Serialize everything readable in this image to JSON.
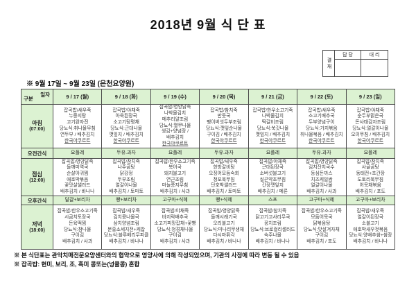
{
  "title": "2018년 9월 식 단 표",
  "approval": {
    "stamp_label": "결재",
    "columns": [
      "담 당",
      "대 리"
    ]
  },
  "subtitle": "※ 9월 17일 ~ 9월 23일 (은천요양원)",
  "table": {
    "corner": {
      "top_right": "일자",
      "bottom_left": "구분"
    },
    "day_headers": [
      "9 / 17 (월)",
      "9 / 18 (화)",
      "9 / 19 (수)",
      "9 / 20 (목)",
      "9 / 21 (금)",
      "9 / 22 (토)",
      "9 / 23 (일)"
    ],
    "rows": [
      {
        "label": "아침",
        "time": "(07:00)",
        "type": "breakfast",
        "cells": [
          [
            "잡곡밥/새우죽",
            "누룽지탕",
            "고기완자전",
            "당뇨식:취나물무침",
            "연두부 / 배추김치",
            "한국야쿠르트"
          ],
          [
            "잡곡밥/야채죽",
            "아욱된장국",
            "소고기탕평채",
            "당뇨식:근대나물",
            "깻잎지 / 배추김치",
            "한국야쿠르트"
          ],
          [
            "잡곡밥/영양닭죽",
            "나박물김치",
            "메추리알조림",
            "당뇨식:열무나물",
            "생김+양념장 /",
            "배추김치",
            "한국야쿠르트"
          ],
          [
            "잡곡밥/참치죽",
            "만둣국",
            "팽이버섯두부조림",
            "당뇨식:깻잎순나물",
            "구이김 / 배추김치",
            "한국야쿠르트"
          ],
          [
            "잡곡밥/한우소고기죽",
            "나박물김치",
            "떡갈비조림",
            "당뇨식:쑥갓나물",
            "깻잎지 / 배추김치",
            "한국야쿠르트"
          ],
          [
            "잡곡밥/새우죽",
            "소고기배추국",
            "두부양념구이",
            "당뇨식:가지볶음",
            "취나물볶음 / 배추김치",
            "한국야쿠르트"
          ],
          [
            "잡곡밥/야채죽",
            "순두부맑은국",
            "돈사태감자조림",
            "당뇨식:얼갈이나물",
            "오이무침 / 배추김치",
            "한국야쿠르트"
          ]
        ]
      },
      {
        "label": "오전간식",
        "time": "",
        "type": "msnack",
        "cells": [
          [
            "요플레"
          ],
          [
            "두유.과자"
          ],
          [
            "요플레"
          ],
          [
            "두유.과자"
          ],
          [
            "요플레"
          ],
          [
            "두유.과자"
          ],
          [
            "요플레"
          ]
        ]
      },
      {
        "label": "점심",
        "time": "(12:00)",
        "type": "lunch",
        "cells": [
          [
            "잡곡밥/영양닭죽",
            "들깨미역국",
            "순살아귀찜",
            "애호박볶음",
            "꽃맛살샐러드",
            "배추김치 / 바나나"
          ],
          [
            "잡곡밥/참치죽",
            "나주곰탕",
            "닭강정",
            "두부조림",
            "얼갈이나물",
            "배추김치 / 토마토"
          ],
          [
            "잡곡밥/한우소고기죽",
            "북어국",
            "돼지불고기",
            "연근조림",
            "마늘쫑지무침",
            "배추김치 / 사과"
          ],
          [
            "잡곡밥/새우죽",
            "한방갈비탕",
            "오징어모듬숙회",
            "청포묵무침",
            "단호박샐러드",
            "배추김치 / 토마토"
          ],
          [
            "잡곡밥/야채죽",
            "근대된장국",
            "소버섯불고기",
            "실곤약초무침",
            "간장깻잎지",
            "배추김치 / 메론"
          ],
          [
            "잡곡밥/영양닭죽",
            "김치잔치국수",
            "등심돈까스",
            "치즈케일쌈",
            "얼갈이나물",
            "배추김치 / 사과"
          ],
          [
            "잡곡밥/참치죽",
            "사골곰탕",
            "동태전+초간장",
            "도토리묵무침",
            "어묵채볶음",
            "배추김치 / 포도"
          ]
        ]
      },
      {
        "label": "오후간식",
        "time": "",
        "type": "asnack",
        "cells": [
          [
            "달걀+보리차"
          ],
          [
            "빵+보리차"
          ],
          [
            "고구마+식혜"
          ],
          [
            "빵+식혜"
          ],
          [
            "스프"
          ],
          [
            "고구마+식혜"
          ],
          [
            "고구마+보리차"
          ]
        ]
      },
      {
        "label": "저녁",
        "time": "(18:00)",
        "type": "dinner",
        "cells": [
          [
            "잡곡밥/한우소고기죽",
            "시금치토장국",
            "돈육떡찜",
            "당뇨식:참나물",
            "구이김",
            "배추김치 / 사과"
          ],
          [
            "잡곡밥/새우죽",
            "김치콩나물국",
            "삼치양념조림",
            "분홍소세지전+케찹",
            "당뇨식:블루베리무피클",
            "배추김치 / 바나나"
          ],
          [
            "잡곡밥/야채죽",
            "바지락배추국",
            "소고기피망잡채+꽃빵",
            "당뇨식:청경채나물",
            "구이김",
            "배추김치 / 사과"
          ],
          [
            "잡곡밥/영양닭죽",
            "들깨시래기국",
            "오리불고기",
            "당뇨식:미나리무생채",
            "다시마튀각",
            "배추김치 / 바나나"
          ],
          [
            "잡곡밥/참치죽",
            "닭고기고사리무국",
            "꽁치조림",
            "당뇨식:브로컬리샐러드",
            "숙주나물",
            "배추김치 / 바나나"
          ],
          [
            "잡곡밥/한우소고기죽",
            "모듬어묵국",
            "닭볶음탕",
            "당뇨식:맛살겨자채",
            "구이김",
            "배추김치 / 포도"
          ],
          [
            "잡곡밥/새우죽",
            "얼갈이된장국",
            "소불고기",
            "애호박새우젓볶음",
            "당뇨식:양배추쌈+쌈장",
            "배추김치 / 바나나"
          ]
        ]
      }
    ]
  },
  "notes": [
    "※ 본 식단표는 관악치매전문요양센터와의 협약으로 영양사에 의해 작성되었으며, 기관의 사정에 따라 변동 될 수 있음",
    "※ 잡곡밥: 현미, 보리, 조, 흑미 콩또는(넝쿨콩) 혼합"
  ],
  "underlined_item": "한국야쿠르트",
  "colors": {
    "header_green": "#dcf2d2",
    "border": "#4a4a4a"
  }
}
